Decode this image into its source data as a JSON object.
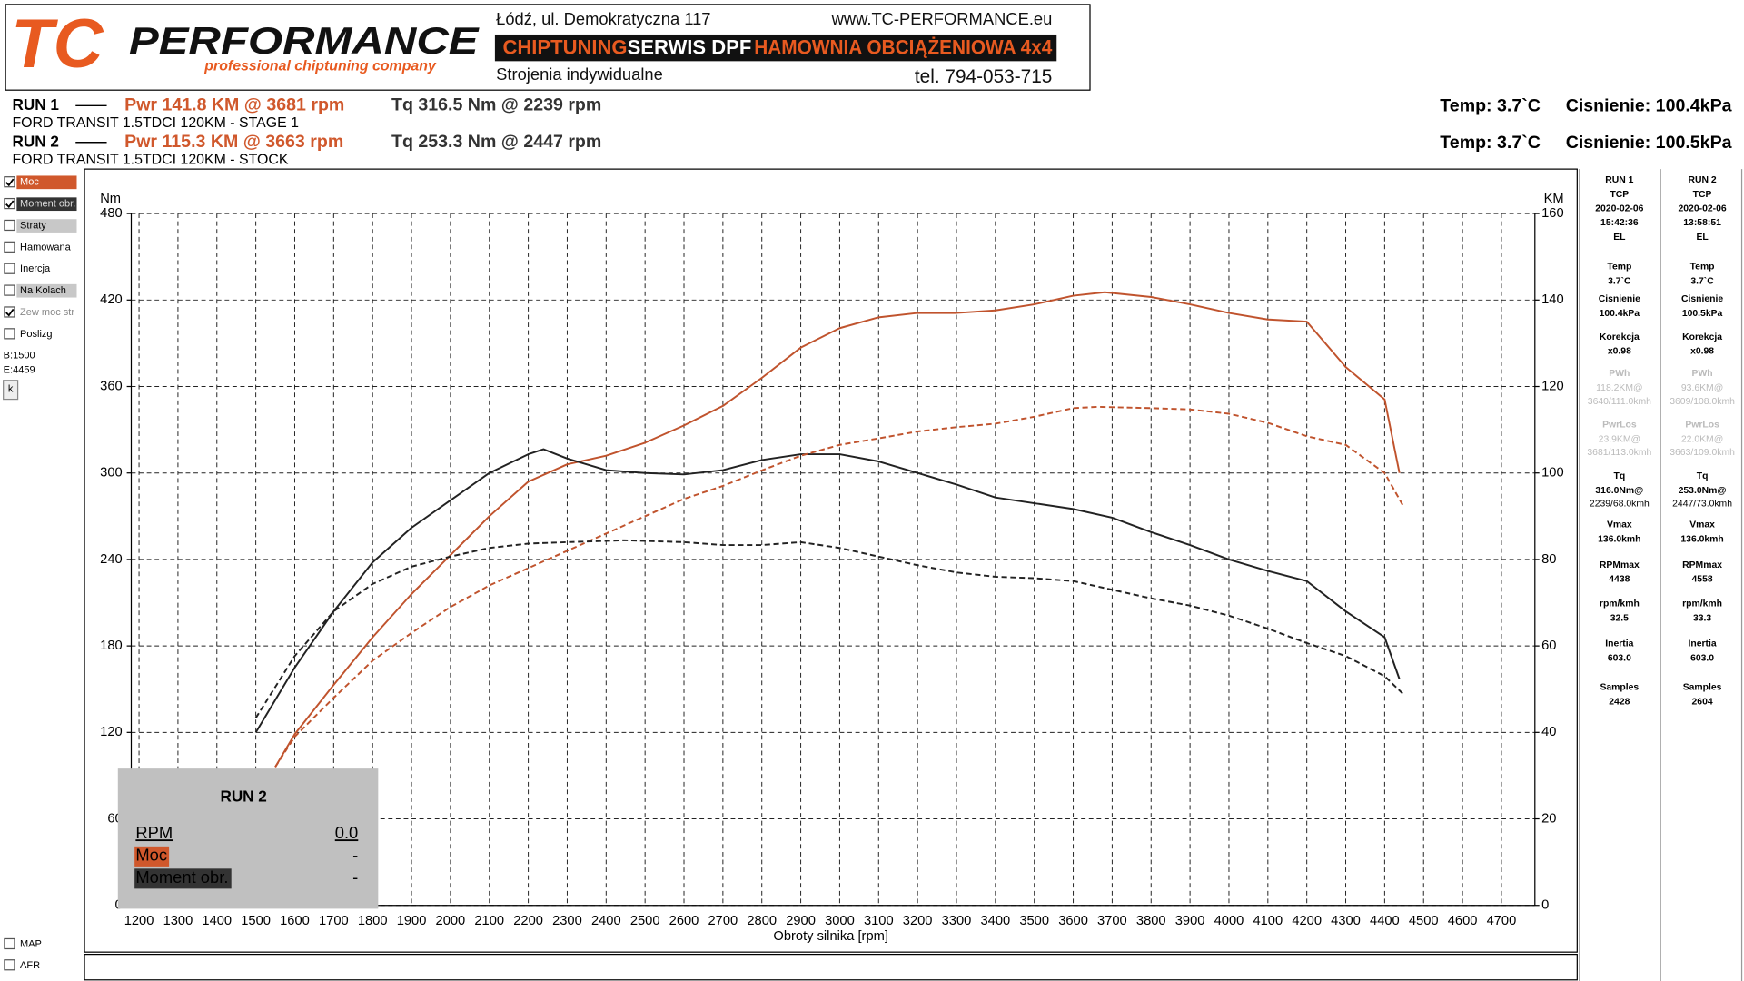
{
  "header": {
    "logo_tc": "TC",
    "logo_performance": "PERFORMANCE",
    "logo_tagline": "professional chiptuning company",
    "address": "Łódź, ul. Demokratyczna 117",
    "website": "www.TC-PERFORMANCE.eu",
    "banner": [
      "CHIPTUNING",
      "SERWIS DPF",
      "HAMOWNIA OBCIĄŻENIOWA 4x4"
    ],
    "tuning": "Strojenia indywidualne",
    "phone": "tel. 794-053-715"
  },
  "runs": [
    {
      "name": "RUN 1",
      "power": "Pwr  141.8 KM @ 3681 rpm",
      "torque": "Tq 316.5 Nm @ 2239 rpm",
      "description": "FORD TRANSIT 1.5TDCI 120KM - STAGE 1",
      "temp": "Temp: 3.7`C",
      "pressure": "Cisnienie: 100.4kPa"
    },
    {
      "name": "RUN 2",
      "power": "Pwr  115.3 KM @ 3663 rpm",
      "torque": "Tq 253.3 Nm @ 2447 rpm",
      "description": "FORD TRANSIT 1.5TDCI 120KM - STOCK",
      "temp": "Temp: 3.7`C",
      "pressure": "Cisnienie: 100.5kPa"
    }
  ],
  "left_panel": {
    "options": [
      {
        "label": "Moc",
        "checked": true
      },
      {
        "label": "Moment obr.",
        "checked": true
      },
      {
        "label": "Straty",
        "checked": false
      },
      {
        "label": "Hamowana",
        "checked": false
      },
      {
        "label": "Inercja",
        "checked": false
      },
      {
        "label": "Na Kolach",
        "checked": false
      },
      {
        "label": "Zew moc str",
        "checked": true
      },
      {
        "label": "Poslizg",
        "checked": false
      }
    ],
    "range_begin": "B:1500",
    "range_end": "E:4459",
    "button": "k",
    "bottom_options": [
      {
        "label": "MAP",
        "checked": false
      },
      {
        "label": "AFR",
        "checked": false
      }
    ]
  },
  "right_panel": [
    {
      "header": [
        "RUN 1",
        "TCP",
        "2020-02-06",
        "15:42:36",
        "EL"
      ],
      "items": [
        {
          "label": "Temp",
          "lines": [
            "3.7`C"
          ]
        },
        {
          "label": "Cisnienie",
          "lines": [
            "100.4kPa"
          ]
        },
        {
          "label": "Korekcja",
          "lines": [
            "x0.98"
          ]
        },
        {
          "label": "PWh",
          "lines": [
            "118.2KM@",
            "3640/111.0kmh"
          ]
        },
        {
          "label": "PwrLos",
          "lines": [
            "23.9KM@",
            "3681/113.0kmh"
          ]
        },
        {
          "label": "Tq",
          "lines": [
            "316.0Nm@",
            "2239/68.0kmh"
          ]
        },
        {
          "label": "Vmax",
          "lines": [
            "136.0kmh"
          ]
        },
        {
          "label": "RPMmax",
          "lines": [
            "4438"
          ]
        },
        {
          "label": "rpm/kmh",
          "lines": [
            "32.5"
          ]
        },
        {
          "label": "Inertia",
          "lines": [
            "603.0"
          ]
        },
        {
          "label": "Samples",
          "lines": [
            "2428"
          ]
        }
      ]
    },
    {
      "header": [
        "RUN 2",
        "TCP",
        "2020-02-06",
        "13:58:51",
        "EL"
      ],
      "items": [
        {
          "label": "Temp",
          "lines": [
            "3.7`C"
          ]
        },
        {
          "label": "Cisnienie",
          "lines": [
            "100.5kPa"
          ]
        },
        {
          "label": "Korekcja",
          "lines": [
            "x0.98"
          ]
        },
        {
          "label": "PWh",
          "lines": [
            "93.6KM@",
            "3609/108.0kmh"
          ]
        },
        {
          "label": "PwrLos",
          "lines": [
            "22.0KM@",
            "3663/109.0kmh"
          ]
        },
        {
          "label": "Tq",
          "lines": [
            "253.0Nm@",
            "2447/73.0kmh"
          ]
        },
        {
          "label": "Vmax",
          "lines": [
            "136.0kmh"
          ]
        },
        {
          "label": "RPMmax",
          "lines": [
            "4558"
          ]
        },
        {
          "label": "rpm/kmh",
          "lines": [
            "33.3"
          ]
        },
        {
          "label": "Inertia",
          "lines": [
            "603.0"
          ]
        },
        {
          "label": "Samples",
          "lines": [
            "2604"
          ]
        }
      ]
    }
  ],
  "popup": {
    "title": "RUN 2",
    "rows": [
      {
        "label": "RPM",
        "value": "0.0"
      },
      {
        "label": "Moc",
        "value": "-"
      },
      {
        "label": "Moment obr.",
        "value": "-"
      }
    ]
  },
  "chart_data": {
    "type": "line",
    "x_label": "Obroty silnika [rpm]",
    "y_label": "Nm",
    "y2_label": "KM",
    "xlim": [
      1180,
      4786
    ],
    "ylim": [
      0,
      480
    ],
    "y2lim": [
      0,
      160
    ],
    "xticks": [
      1200,
      1300,
      1400,
      1500,
      1600,
      1700,
      1800,
      1900,
      2000,
      2100,
      2200,
      2300,
      2400,
      2500,
      2600,
      2700,
      2800,
      2900,
      3000,
      3100,
      3200,
      3300,
      3400,
      3500,
      3600,
      3700,
      3800,
      3900,
      4000,
      4100,
      4200,
      4300,
      4400,
      4500,
      4600,
      4700
    ],
    "yticks": [
      0,
      60,
      120,
      180,
      240,
      300,
      360,
      420,
      480
    ],
    "y2ticks": [
      0,
      20,
      40,
      60,
      80,
      100,
      120,
      140,
      160
    ],
    "grid": true,
    "series": [
      {
        "name": "RUN 1 Moc",
        "color": "#c0532d",
        "dashed": false,
        "axis": "y2",
        "x": [
          1550,
          1600,
          1700,
          1800,
          1900,
          2000,
          2100,
          2200,
          2300,
          2400,
          2500,
          2600,
          2700,
          2800,
          2900,
          3000,
          3100,
          3200,
          3300,
          3400,
          3500,
          3600,
          3681,
          3800,
          3900,
          4000,
          4100,
          4200,
          4300,
          4400,
          4438
        ],
        "values": [
          32,
          39.6,
          51,
          62,
          72,
          81,
          90,
          98,
          102,
          104,
          107,
          111,
          115.5,
          122,
          129,
          133.5,
          136,
          137,
          137,
          137.6,
          139,
          141,
          141.8,
          140.7,
          139,
          137,
          135.5,
          135,
          124.5,
          117,
          100
        ]
      },
      {
        "name": "RUN 1 Moment obr.",
        "color": "#222222",
        "dashed": false,
        "axis": "y",
        "x": [
          1500,
          1600,
          1700,
          1800,
          1900,
          2000,
          2100,
          2200,
          2239,
          2300,
          2400,
          2500,
          2600,
          2700,
          2800,
          2900,
          3000,
          3100,
          3200,
          3300,
          3400,
          3500,
          3600,
          3700,
          3800,
          3900,
          4000,
          4100,
          4200,
          4300,
          4400,
          4438
        ],
        "values": [
          120,
          165,
          204,
          238,
          262,
          281,
          300,
          313,
          316.5,
          310,
          302,
          300,
          299,
          302,
          309,
          313,
          313,
          308,
          300,
          292,
          283,
          279,
          275,
          269,
          259,
          250,
          240,
          232,
          225,
          204,
          186,
          157
        ]
      },
      {
        "name": "RUN 2 Moc",
        "color": "#c0532d",
        "dashed": true,
        "axis": "y2",
        "x": [
          1550,
          1600,
          1700,
          1800,
          1900,
          2000,
          2100,
          2200,
          2300,
          2400,
          2500,
          2600,
          2700,
          2800,
          2900,
          3000,
          3100,
          3200,
          3300,
          3400,
          3500,
          3600,
          3663,
          3800,
          3900,
          4000,
          4100,
          4200,
          4300,
          4400,
          4450
        ],
        "values": [
          32,
          39,
          48,
          56.6,
          63,
          69,
          74,
          78,
          82,
          86,
          90,
          94,
          97,
          100.6,
          104,
          106.5,
          108,
          109.6,
          110.6,
          111.4,
          113,
          115,
          115.3,
          115,
          114.7,
          113.7,
          111.6,
          108.5,
          106.5,
          100,
          92
        ]
      },
      {
        "name": "RUN 2 Moment obr.",
        "color": "#222222",
        "dashed": true,
        "axis": "y",
        "x": [
          1500,
          1600,
          1700,
          1800,
          1900,
          2000,
          2100,
          2200,
          2300,
          2447,
          2600,
          2700,
          2800,
          2900,
          3000,
          3100,
          3200,
          3300,
          3400,
          3500,
          3600,
          3700,
          3800,
          3900,
          4000,
          4100,
          4200,
          4300,
          4400,
          4450
        ],
        "values": [
          130,
          173,
          204,
          223,
          235,
          242,
          248,
          251,
          252,
          253.3,
          252,
          250,
          250,
          252,
          248,
          242,
          236,
          231,
          228,
          227,
          225,
          219,
          213,
          208,
          201,
          192,
          182,
          173,
          159,
          146
        ]
      }
    ]
  }
}
